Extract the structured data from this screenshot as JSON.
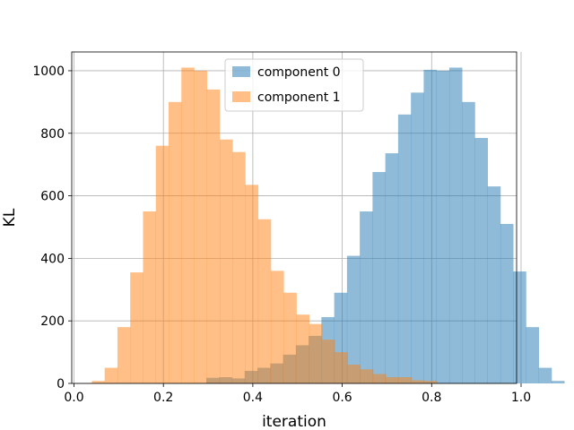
{
  "chart_data": {
    "type": "histogram",
    "xlabel": "iteration",
    "ylabel": "KL",
    "xlim": [
      -0.005,
      0.99
    ],
    "ylim": [
      0,
      1060
    ],
    "xticks": [
      0.0,
      0.2,
      0.4,
      0.6,
      0.8,
      1.0
    ],
    "xtick_labels": [
      "0.0",
      "0.2",
      "0.4",
      "0.6",
      "0.8",
      "1.0"
    ],
    "yticks": [
      0,
      200,
      400,
      600,
      800,
      1000
    ],
    "ytick_labels": [
      "0",
      "200",
      "400",
      "600",
      "800",
      "1000"
    ],
    "grid": true,
    "legend_position": "upper-center",
    "bin_width": 0.0286,
    "series": [
      {
        "name": "component 0",
        "color": "#1f77b4",
        "opacity": 0.5,
        "bin_start": 0.296,
        "counts": [
          18,
          20,
          16,
          40,
          50,
          64,
          92,
          122,
          152,
          212,
          290,
          408,
          550,
          676,
          736,
          860,
          930,
          1003,
          1000,
          1010,
          900,
          785,
          630,
          510,
          358,
          180,
          50,
          8
        ]
      },
      {
        "name": "component 1",
        "color": "#ff7f0e",
        "opacity": 0.5,
        "bin_start": 0.04,
        "counts": [
          8,
          50,
          180,
          355,
          550,
          760,
          900,
          1010,
          1000,
          940,
          780,
          740,
          635,
          525,
          360,
          290,
          220,
          190,
          140,
          100,
          60,
          45,
          30,
          20,
          20,
          10,
          8,
          0
        ]
      }
    ]
  }
}
